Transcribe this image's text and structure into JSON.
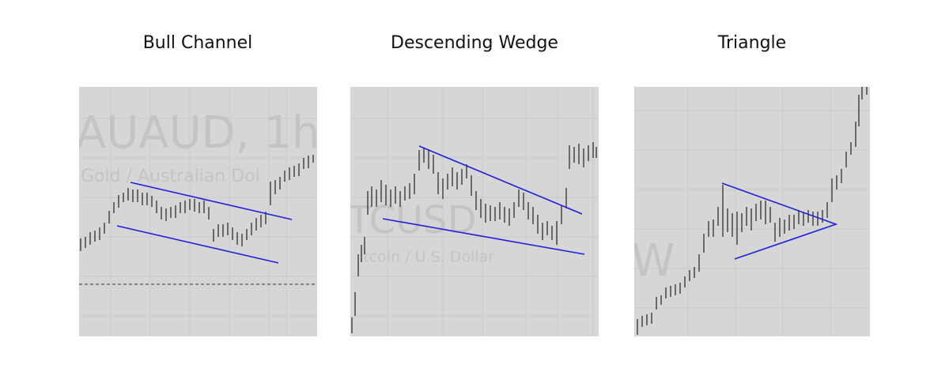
{
  "panels": [
    {
      "title": "Bull Channel",
      "watermark": [
        "AUAUD, 1h",
        "Gold / Australian Dol"
      ]
    },
    {
      "title": "Descending Wedge",
      "watermark": [
        "TCUSD",
        "itcoin / U.S. Dollar"
      ]
    },
    {
      "title": "Triangle",
      "watermark": [
        "W"
      ]
    }
  ]
}
